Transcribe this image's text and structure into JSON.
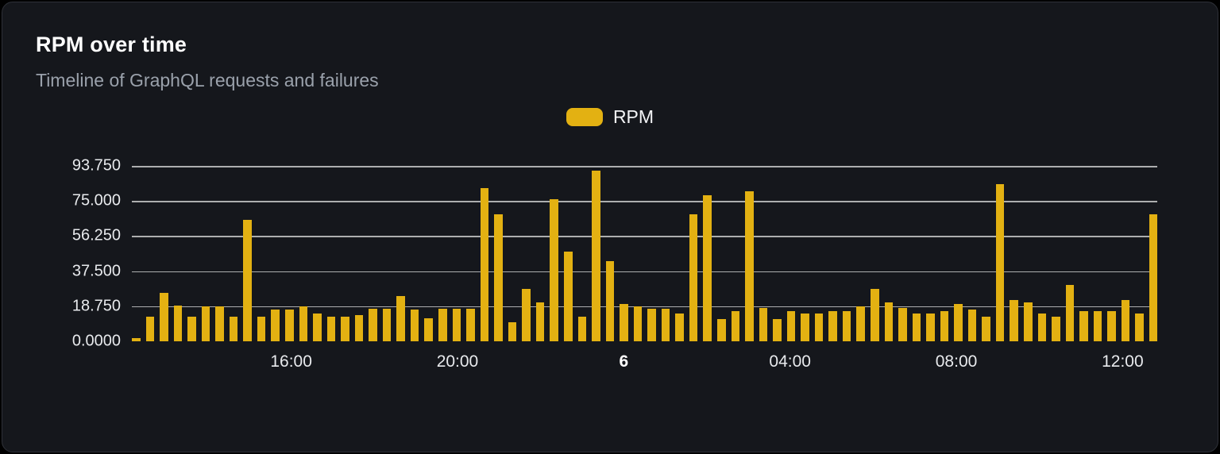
{
  "card": {
    "title": "RPM over time",
    "subtitle": "Timeline of GraphQL requests and failures"
  },
  "legend": {
    "label": "RPM"
  },
  "colors": {
    "background": "#15171c",
    "border": "#2e3138",
    "bar": "#e3b112",
    "grid": "rgba(255,255,255,0.65)",
    "title": "#ffffff",
    "subtitle": "#9aa1ab",
    "axis_label": "#e8eaed"
  },
  "chart_data": {
    "type": "bar",
    "title": "RPM over time",
    "subtitle": "Timeline of GraphQL requests and failures",
    "legend": [
      "RPM"
    ],
    "legend_position": "top-center",
    "grid": "horizontal",
    "ylabel": "",
    "xlabel": "",
    "ylim": [
      0,
      93.75
    ],
    "yticks": [
      0,
      18.75,
      37.5,
      56.25,
      75,
      93.75
    ],
    "ytick_labels": [
      "0.0000",
      "18.750",
      "37.500",
      "56.250",
      "75.000",
      "93.750"
    ],
    "x_interval_minutes": 20,
    "x": [
      "12:20",
      "12:40",
      "13:00",
      "13:20",
      "13:40",
      "14:00",
      "14:20",
      "14:40",
      "15:00",
      "15:20",
      "15:40",
      "16:00",
      "16:20",
      "16:40",
      "17:00",
      "17:20",
      "17:40",
      "18:00",
      "18:20",
      "18:40",
      "19:00",
      "19:20",
      "19:40",
      "20:00",
      "20:20",
      "20:40",
      "21:00",
      "21:20",
      "21:40",
      "22:00",
      "22:20",
      "22:40",
      "23:00",
      "23:20",
      "23:40",
      "00:00",
      "00:20",
      "00:40",
      "01:00",
      "01:20",
      "01:40",
      "02:00",
      "02:20",
      "02:40",
      "03:00",
      "03:20",
      "03:40",
      "04:00",
      "04:20",
      "04:40",
      "05:00",
      "05:20",
      "05:40",
      "06:00",
      "06:20",
      "06:40",
      "07:00",
      "07:20",
      "07:40",
      "08:00",
      "08:20",
      "08:40",
      "09:00",
      "09:20",
      "09:40",
      "10:00",
      "10:20",
      "10:40",
      "11:00",
      "11:20",
      "11:40",
      "12:00",
      "12:20",
      "12:40"
    ],
    "xticks": [
      {
        "index": 11,
        "label": "16:00",
        "bold": false
      },
      {
        "index": 23,
        "label": "20:00",
        "bold": false
      },
      {
        "index": 35,
        "label": "6",
        "bold": true
      },
      {
        "index": 47,
        "label": "04:00",
        "bold": false
      },
      {
        "index": 59,
        "label": "08:00",
        "bold": false
      },
      {
        "index": 71,
        "label": "12:00",
        "bold": false
      }
    ],
    "series": [
      {
        "name": "RPM",
        "color": "#e3b112",
        "values": [
          1.5,
          13,
          26,
          19,
          13,
          18.5,
          18.5,
          13,
          65,
          13,
          17,
          17,
          18.5,
          15,
          13,
          13,
          14,
          17.5,
          17.5,
          24,
          17,
          12.5,
          17.5,
          17.5,
          17.5,
          82,
          68,
          10,
          28,
          21,
          76,
          48,
          13,
          91,
          43,
          20,
          18.5,
          17.5,
          17.5,
          15,
          68,
          78,
          12,
          16,
          80,
          18,
          12,
          16,
          15,
          15,
          16,
          16,
          18.5,
          28,
          21,
          18,
          15,
          15,
          16,
          20,
          17,
          13,
          84,
          22,
          21,
          15,
          13,
          30,
          16,
          16,
          16,
          22,
          15,
          68
        ]
      }
    ]
  }
}
